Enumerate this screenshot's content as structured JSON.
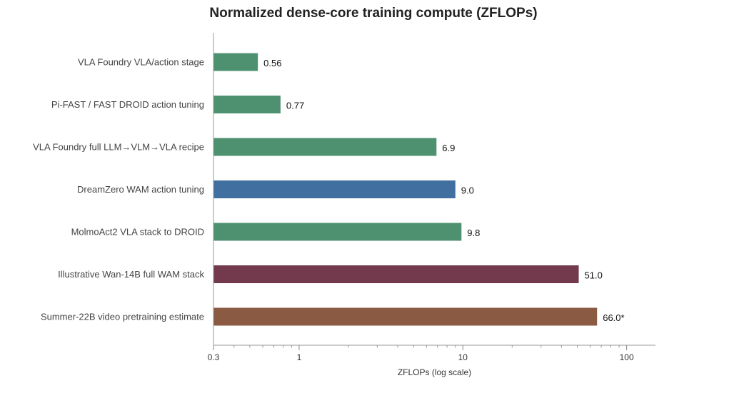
{
  "chart_data": {
    "type": "bar",
    "orientation": "horizontal",
    "title": "Normalized dense-core training compute (ZFLOPs)",
    "xlabel": "ZFLOPs (log scale)",
    "ylabel": "",
    "x_scale": "log",
    "xlim": [
      0.3,
      150
    ],
    "x_ticks": [
      0.3,
      1,
      10,
      100
    ],
    "x_tick_labels": [
      "0.3",
      "1",
      "10",
      "100"
    ],
    "grid": false,
    "categories": [
      "VLA Foundry VLA/action stage",
      "Pi-FAST / FAST DROID action tuning",
      "VLA Foundry full LLM→VLM→VLA recipe",
      "DreamZero WAM action tuning",
      "MolmoAct2 VLA stack to DROID",
      "Illustrative Wan-14B full WAM stack",
      "Summer-22B video pretraining estimate"
    ],
    "values": [
      0.56,
      0.77,
      6.9,
      9.0,
      9.8,
      51.0,
      66.0
    ],
    "value_labels": [
      "0.56",
      "0.77",
      "6.9",
      "9.0",
      "9.8",
      "51.0",
      "66.0*"
    ],
    "colors": [
      "#4e9170",
      "#4e9170",
      "#4e9170",
      "#416fa0",
      "#4e9170",
      "#733a4e",
      "#8a5a42"
    ]
  }
}
